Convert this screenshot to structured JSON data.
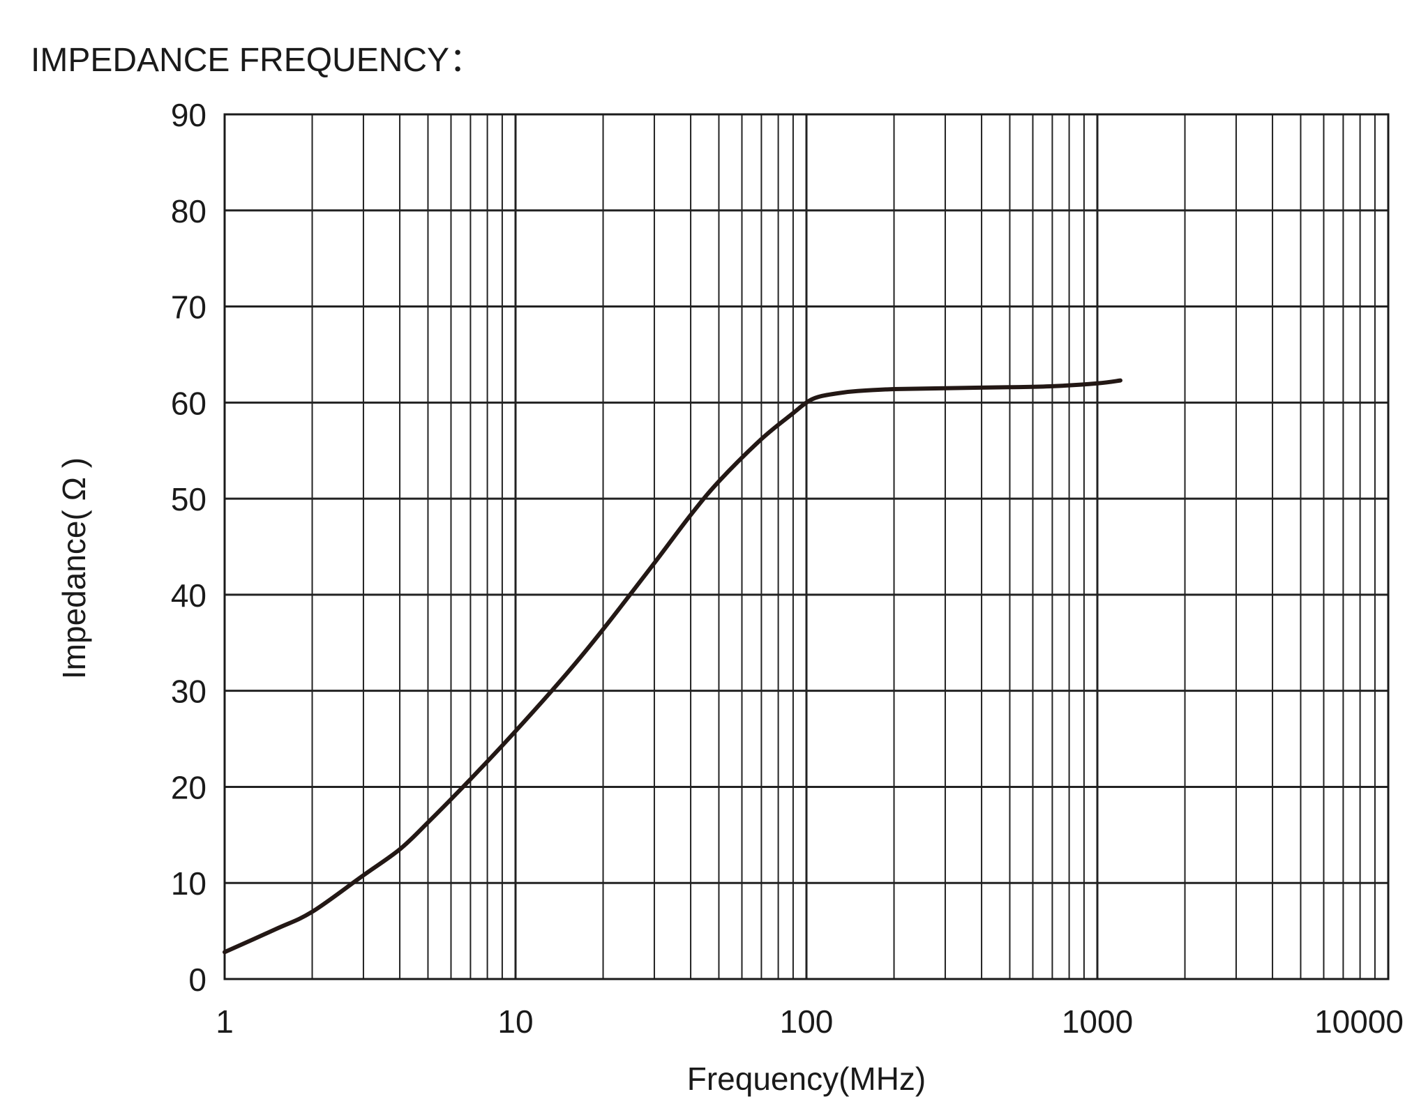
{
  "chart_data": {
    "type": "line",
    "title": "IMPEDANCE FREQUENCY：",
    "xlabel": "Frequency(MHz)",
    "ylabel": "Impedance( Ω )",
    "xscale": "log",
    "xlim": [
      1,
      10000
    ],
    "ylim": [
      0,
      90
    ],
    "x_ticks": [
      1,
      10,
      100,
      1000,
      10000
    ],
    "x_tick_labels": [
      "1",
      "10",
      "100",
      "1000",
      "10000"
    ],
    "y_ticks": [
      0,
      10,
      20,
      30,
      40,
      50,
      60,
      70,
      80,
      90
    ],
    "y_tick_labels": [
      "0",
      "10",
      "20",
      "30",
      "40",
      "50",
      "60",
      "70",
      "80",
      "90"
    ],
    "grid": true,
    "line_color": "#231815",
    "series": [
      {
        "x": [
          1,
          1.5,
          2,
          3,
          4,
          5,
          7,
          10,
          15,
          20,
          30,
          40,
          50,
          70,
          90,
          100,
          110,
          130,
          150,
          200,
          300,
          500,
          700,
          1000,
          1200
        ],
        "y": [
          2.8,
          5.2,
          7.0,
          10.8,
          13.5,
          16.3,
          20.8,
          25.8,
          31.8,
          36.4,
          43.3,
          48.3,
          51.8,
          56.2,
          58.9,
          60.0,
          60.6,
          61.0,
          61.2,
          61.4,
          61.5,
          61.6,
          61.7,
          62.0,
          62.3
        ]
      }
    ]
  }
}
